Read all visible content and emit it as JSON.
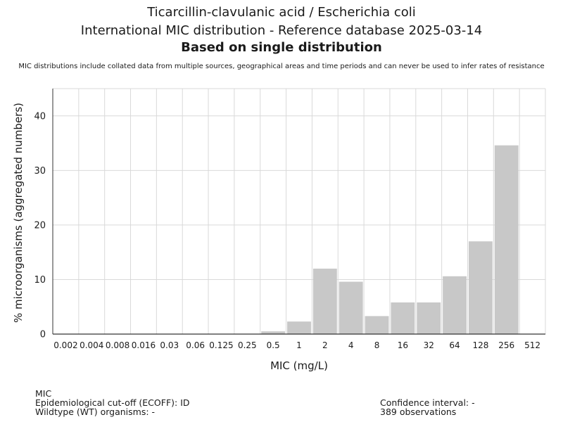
{
  "header": {
    "title_line1": "Ticarcillin-clavulanic acid / Escherichia coli",
    "title_line2": "International MIC distribution - Reference database 2025-03-14",
    "title_line3": "Based on single distribution",
    "note": "MIC distributions include collated data from multiple sources, geographical areas and time periods and can never be used to infer rates of resistance"
  },
  "chart_data": {
    "type": "bar",
    "title": "Ticarcillin-clavulanic acid / Escherichia coli",
    "xlabel": "MIC (mg/L)",
    "ylabel": "% microorganisms (aggregated numbers)",
    "categories": [
      "0.002",
      "0.004",
      "0.008",
      "0.016",
      "0.03",
      "0.06",
      "0.125",
      "0.25",
      "0.5",
      "1",
      "2",
      "4",
      "8",
      "16",
      "32",
      "64",
      "128",
      "256",
      "512"
    ],
    "values": [
      0,
      0,
      0,
      0,
      0,
      0,
      0,
      0,
      0.5,
      2.3,
      12.0,
      9.6,
      3.3,
      5.8,
      5.8,
      10.6,
      17.0,
      34.6,
      0
    ],
    "ylim": [
      0,
      45
    ],
    "yticks": [
      0,
      10,
      20,
      30,
      40
    ],
    "grid": true,
    "bar_color": "#c8c8c8",
    "grid_color": "#d9d9d9"
  },
  "footer": {
    "left": [
      "MIC",
      "Epidemiological cut-off (ECOFF): ID",
      "Wildtype (WT) organisms:  -"
    ],
    "right": [
      "Confidence interval: -",
      "389 observations"
    ]
  }
}
